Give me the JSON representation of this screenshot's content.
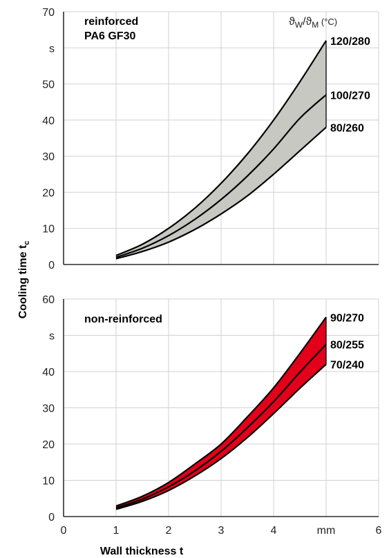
{
  "chart_data": [
    {
      "type": "area",
      "title": "reinforced PA6 GF30",
      "title_lines": [
        "reinforced",
        "PA6 GF30"
      ],
      "legend_header": "ϑW/ϑM (°C)",
      "legend_header_parts": {
        "sym": "ϑ",
        "sub1": "W",
        "slash": "/",
        "sub2": "M",
        "unit": " (°C)"
      },
      "band_color": "#c8c8c2",
      "xlim": [
        0,
        6
      ],
      "ylim": [
        0,
        70
      ],
      "y_ticks": [
        "0",
        "10",
        "20",
        "30",
        "40",
        "50",
        "s",
        "70"
      ],
      "grid": true,
      "series": [
        {
          "name": "120/280",
          "x": [
            1,
            1.5,
            2,
            2.5,
            3,
            3.5,
            4,
            4.5,
            5
          ],
          "values": [
            2.5,
            5.6,
            10.0,
            15.6,
            22.5,
            30.6,
            40.0,
            50.6,
            62.0
          ]
        },
        {
          "name": "100/270",
          "x": [
            1,
            1.5,
            2,
            2.5,
            3,
            3.5,
            4,
            4.5,
            5
          ],
          "values": [
            2.0,
            4.5,
            8.0,
            12.5,
            18.0,
            24.5,
            32.0,
            40.5,
            47.0
          ]
        },
        {
          "name": "80/260",
          "x": [
            1,
            1.5,
            2,
            2.5,
            3,
            3.5,
            4,
            4.5,
            5
          ],
          "values": [
            1.6,
            3.6,
            6.2,
            9.7,
            14.0,
            19.0,
            25.0,
            31.5,
            38.0
          ]
        }
      ]
    },
    {
      "type": "area",
      "title": "non-reinforced",
      "band_color": "#e2001a",
      "xlim": [
        0,
        6
      ],
      "ylim": [
        0,
        60
      ],
      "y_ticks": [
        "0",
        "10",
        "20",
        "30",
        "40",
        "s",
        "60"
      ],
      "grid": true,
      "series": [
        {
          "name": "90/270",
          "x": [
            1,
            1.5,
            2,
            2.5,
            3,
            3.5,
            4,
            4.5,
            5
          ],
          "values": [
            2.9,
            5.6,
            9.4,
            14.5,
            20.0,
            27.5,
            35.5,
            45.0,
            55.0
          ]
        },
        {
          "name": "80/255",
          "x": [
            1,
            1.5,
            2,
            2.5,
            3,
            3.5,
            4,
            4.5,
            5
          ],
          "values": [
            2.4,
            4.8,
            8.2,
            12.6,
            18.0,
            24.5,
            31.7,
            39.8,
            47.5
          ]
        },
        {
          "name": "70/240",
          "x": [
            1,
            1.5,
            2,
            2.5,
            3,
            3.5,
            4,
            4.5,
            5
          ],
          "values": [
            2.0,
            4.2,
            7.2,
            11.2,
            16.0,
            21.8,
            28.4,
            35.4,
            42.0
          ]
        }
      ]
    }
  ],
  "x_ticks": [
    "0",
    "1",
    "2",
    "3",
    "4",
    "mm",
    "6"
  ],
  "xlabel": "Wall thickness t",
  "ylabel": "Cooling time t",
  "ylabel_sub": "c"
}
